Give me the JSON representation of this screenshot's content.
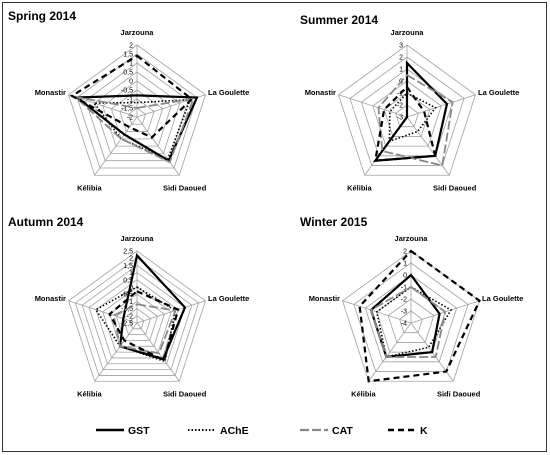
{
  "chart_data": [
    {
      "type": "radar",
      "title": "Spring 2014",
      "axes": [
        "Jarzouna",
        "La Goulette",
        "Sidi Daoued",
        "Kélibia",
        "Monastir"
      ],
      "rlim": [
        -2,
        2
      ],
      "tick_labels": [
        "2",
        "1,5",
        "1",
        "0,5",
        "0",
        "-0,5",
        "-1",
        "-1,5",
        "-2"
      ],
      "series": [
        {
          "name": "GST",
          "values": [
            -0.8,
            1.5,
            1.0,
            -0.8,
            1.5
          ]
        },
        {
          "name": "AChE",
          "values": [
            -1.2,
            1.1,
            0.9,
            -0.5,
            0.5
          ]
        },
        {
          "name": "CAT",
          "values": [
            -1.5,
            1.3,
            1.1,
            -0.5,
            1.6
          ]
        },
        {
          "name": "K",
          "values": [
            1.4,
            1.2,
            -0.6,
            -1.3,
            1.8
          ]
        }
      ]
    },
    {
      "type": "radar",
      "title": "Summer 2014",
      "axes": [
        "Jarzouna",
        "La Goulette",
        "Sidi Daoued",
        "Kélibia",
        "Monastir"
      ],
      "rlim": [
        -3,
        3
      ],
      "tick_labels": [
        "3",
        "2",
        "1",
        "0",
        "-1",
        "-2",
        "-3"
      ],
      "series": [
        {
          "name": "GST",
          "values": [
            1.5,
            0.5,
            1.0,
            1.5,
            -3.0
          ]
        },
        {
          "name": "AChE",
          "values": [
            -1.0,
            -0.5,
            -1.5,
            -0.5,
            -1.5
          ]
        },
        {
          "name": "CAT",
          "values": [
            0.5,
            1.0,
            2.0,
            0.5,
            -0.5
          ]
        },
        {
          "name": "K",
          "values": [
            -0.5,
            -1.5,
            1.0,
            1.5,
            -1.0
          ]
        }
      ]
    },
    {
      "type": "radar",
      "title": "Autumn 2014",
      "axes": [
        "Jarzouna",
        "La Goulette",
        "Sidi Daoued",
        "Kélibia",
        "Monastir"
      ],
      "rlim": [
        -2.5,
        2.5
      ],
      "tick_labels": [
        "2,5",
        "2",
        "1,5",
        "1",
        "0,5",
        "0",
        "-0,5",
        "-1",
        "-1,5",
        "-2",
        "-2,5"
      ],
      "series": [
        {
          "name": "GST",
          "values": [
            2.2,
            1.0,
            0.6,
            -0.5,
            -1.5
          ]
        },
        {
          "name": "AChE",
          "values": [
            0.0,
            0.3,
            0.8,
            -0.5,
            0.5
          ]
        },
        {
          "name": "CAT",
          "values": [
            -1.2,
            0.3,
            0.1,
            -0.5,
            -0.8
          ]
        },
        {
          "name": "K",
          "values": [
            -0.3,
            0.5,
            0.7,
            -1.0,
            -0.5
          ]
        }
      ]
    },
    {
      "type": "radar",
      "title": "Winter 2015",
      "axes": [
        "Jarzouna",
        "La Goulette",
        "Sidi Daoued",
        "Kélibia",
        "Monastir"
      ],
      "rlim": [
        -4,
        2
      ],
      "tick_labels": [
        "2",
        "1",
        "0",
        "-1",
        "-2",
        "-3",
        "-4"
      ],
      "series": [
        {
          "name": "GST",
          "values": [
            0.0,
            -1.5,
            -1.0,
            -0.5,
            -0.5
          ]
        },
        {
          "name": "AChE",
          "values": [
            -1.0,
            -0.5,
            -1.5,
            -0.5,
            -1.0
          ]
        },
        {
          "name": "CAT",
          "values": [
            -1.0,
            -1.0,
            -0.5,
            -0.5,
            -0.5
          ]
        },
        {
          "name": "K",
          "values": [
            2.0,
            2.0,
            1.0,
            2.0,
            0.5
          ]
        }
      ]
    }
  ],
  "legend": [
    {
      "name": "GST"
    },
    {
      "name": "AChE"
    },
    {
      "name": "CAT"
    },
    {
      "name": "K"
    }
  ]
}
